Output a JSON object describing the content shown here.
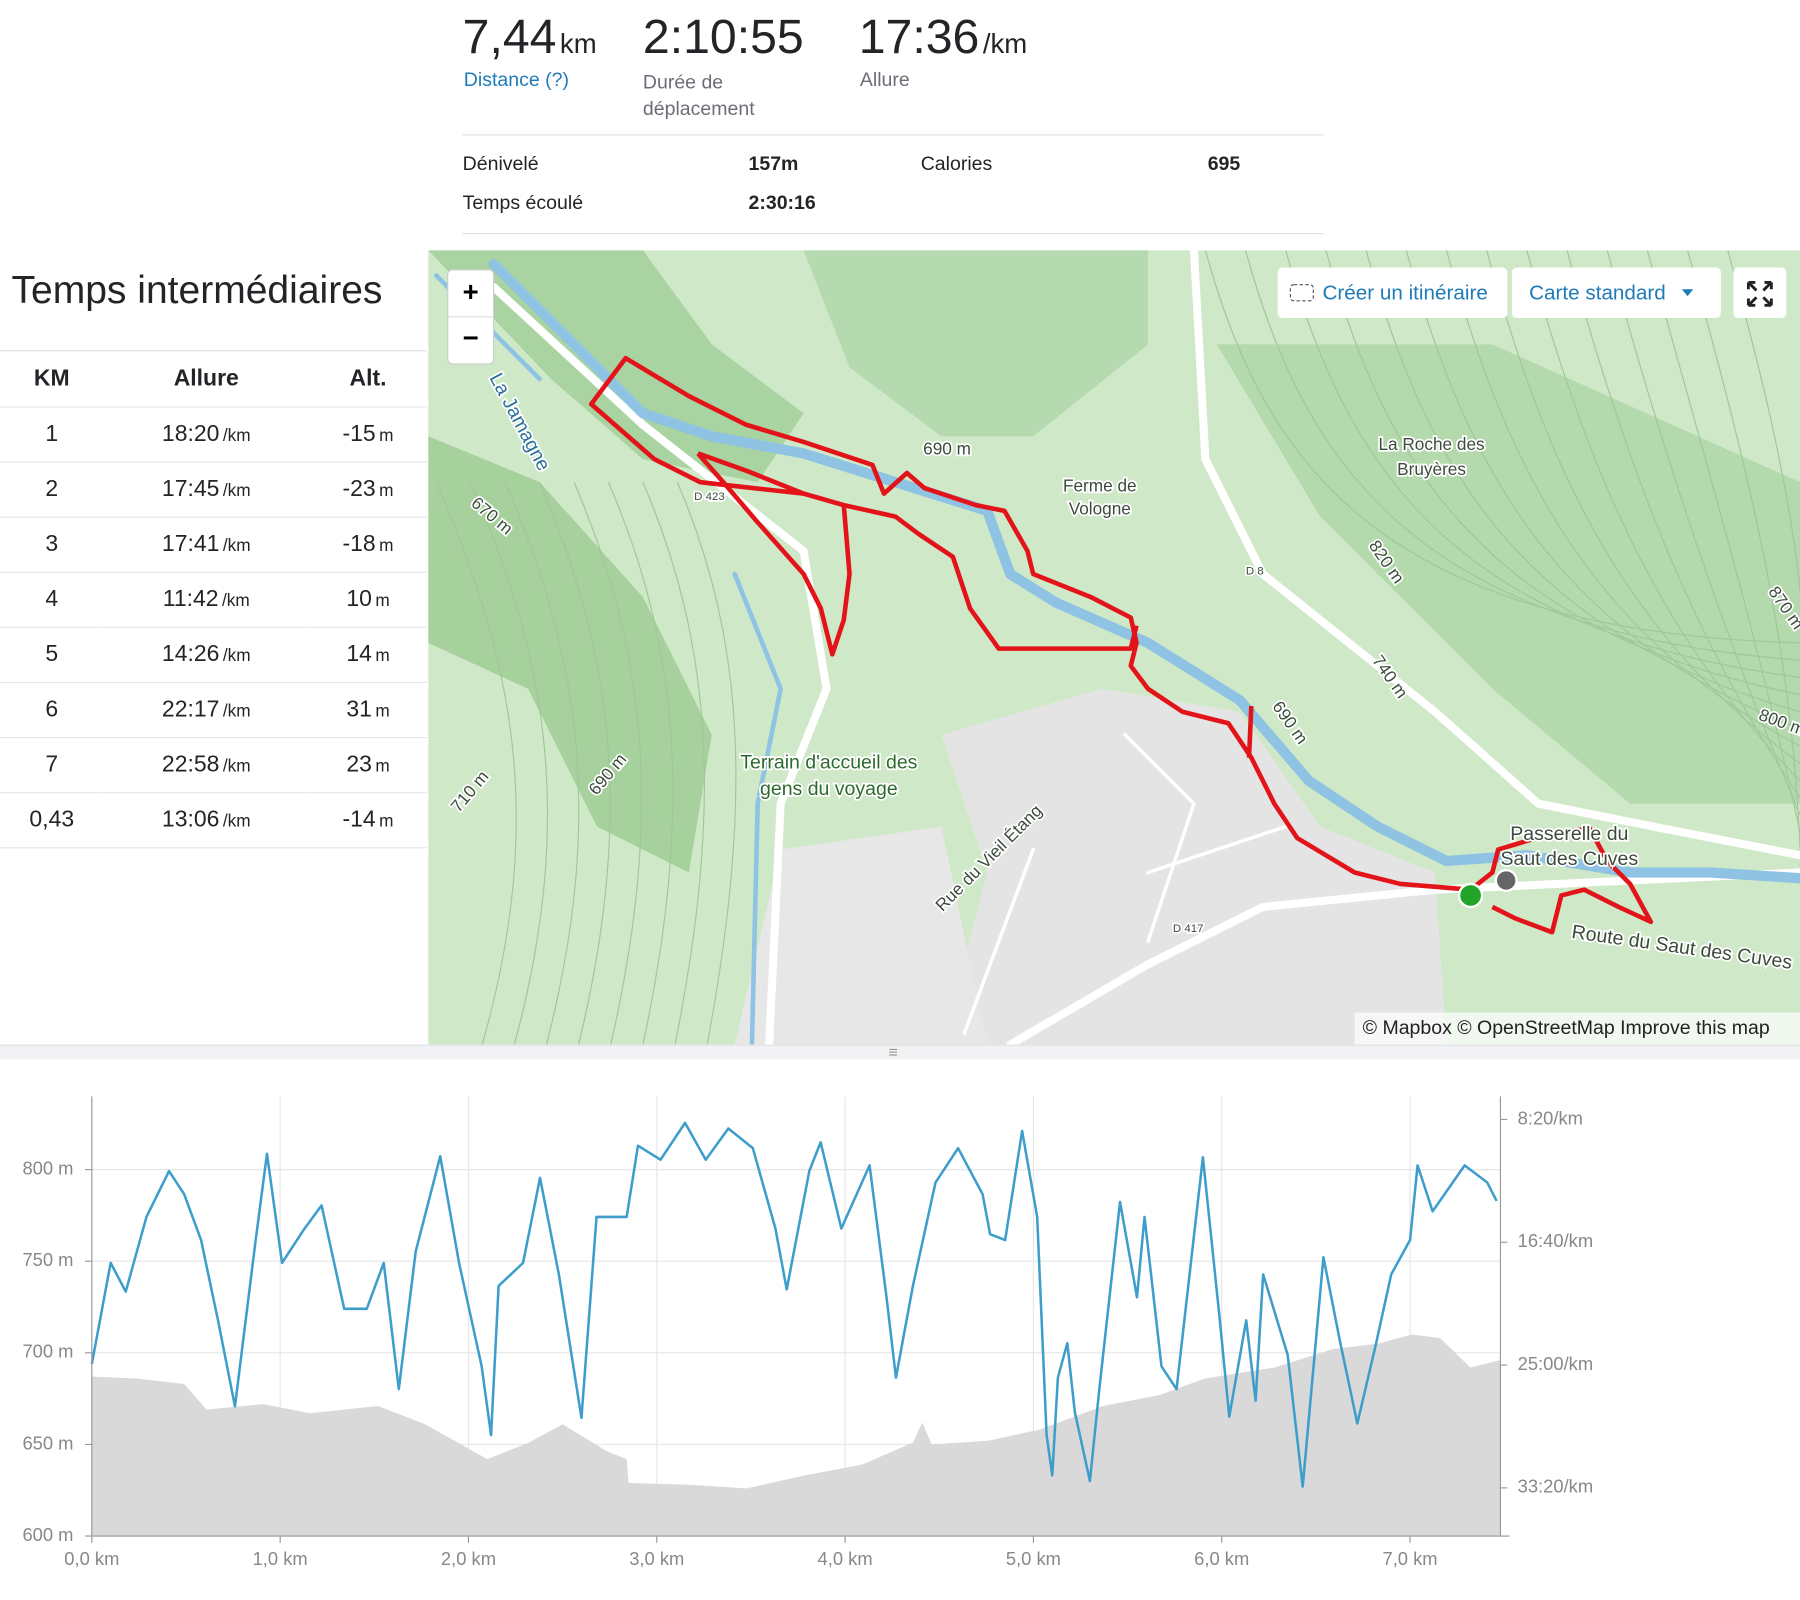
{
  "stats": {
    "distance": {
      "value": "7,44",
      "unit": "km",
      "label": "Distance (?)"
    },
    "moving_time": {
      "value": "2:10:55",
      "label": "Durée de déplacement"
    },
    "pace": {
      "value": "17:36",
      "unit": "/km",
      "label": "Allure"
    },
    "details": [
      {
        "label": "Dénivelé",
        "value": "157m"
      },
      {
        "label": "Calories",
        "value": "695"
      },
      {
        "label": "Temps écoulé",
        "value": "2:30:16"
      }
    ]
  },
  "splits": {
    "title": "Temps intermédiaires",
    "headers": [
      "KM",
      "Allure",
      "Alt."
    ],
    "rows": [
      {
        "km": "1",
        "pace": "18:20",
        "pace_unit": "/km",
        "alt": "-15",
        "alt_unit": "m"
      },
      {
        "km": "2",
        "pace": "17:45",
        "pace_unit": "/km",
        "alt": "-23",
        "alt_unit": "m"
      },
      {
        "km": "3",
        "pace": "17:41",
        "pace_unit": "/km",
        "alt": "-18",
        "alt_unit": "m"
      },
      {
        "km": "4",
        "pace": "11:42",
        "pace_unit": "/km",
        "alt": "10",
        "alt_unit": "m"
      },
      {
        "km": "5",
        "pace": "14:26",
        "pace_unit": "/km",
        "alt": "14",
        "alt_unit": "m"
      },
      {
        "km": "6",
        "pace": "22:17",
        "pace_unit": "/km",
        "alt": "31",
        "alt_unit": "m"
      },
      {
        "km": "7",
        "pace": "22:58",
        "pace_unit": "/km",
        "alt": "23",
        "alt_unit": "m"
      },
      {
        "km": "0,43",
        "pace": "13:06",
        "pace_unit": "/km",
        "alt": "-14",
        "alt_unit": "m"
      }
    ]
  },
  "map": {
    "zoom_in": "+",
    "zoom_out": "−",
    "create_route": "Créer un itinéraire",
    "map_style": "Carte standard",
    "attribution": "© Mapbox © OpenStreetMap Improve this map",
    "labels": [
      "690 m",
      "Ferme de",
      "Vologne",
      "La Roche des",
      "Bruyères",
      "D 423",
      "670 m",
      "La Jamagne",
      "D 8",
      "820 m",
      "740 m",
      "690 m",
      "870 m",
      "800 m",
      "Terrain d'accueil des",
      "gens du voyage",
      "690 m",
      "710 m",
      "Rue du Vieil Étang",
      "D 417",
      "Passerelle du",
      "Saut des Cuves",
      "Route du Saut des Cuves"
    ]
  },
  "chart_data": {
    "type": "line",
    "xlim": [
      0,
      7.48
    ],
    "xticks": [
      {
        "value": 0,
        "label": "0,0 km"
      },
      {
        "value": 1,
        "label": "1,0 km"
      },
      {
        "value": 2,
        "label": "2,0 km"
      },
      {
        "value": 3,
        "label": "3,0 km"
      },
      {
        "value": 4,
        "label": "4,0 km"
      },
      {
        "value": 5,
        "label": "5,0 km"
      },
      {
        "value": 6,
        "label": "6,0 km"
      },
      {
        "value": 7,
        "label": "7,0 km"
      }
    ],
    "ylim": [
      600,
      840
    ],
    "yticks": [
      {
        "value": 600,
        "label": "600 m"
      },
      {
        "value": 650,
        "label": "650 m"
      },
      {
        "value": 700,
        "label": "700 m"
      },
      {
        "value": 750,
        "label": "750 m"
      },
      {
        "value": 800,
        "label": "800 m"
      }
    ],
    "y2lim": [
      2196,
      406
    ],
    "y2ticks": [
      {
        "value": 500,
        "label": "8:20/km"
      },
      {
        "value": 1000,
        "label": "16:40/km"
      },
      {
        "value": 1500,
        "label": "25:00/km"
      },
      {
        "value": 2000,
        "label": "33:20/km"
      }
    ],
    "grid": true,
    "series": [
      {
        "kind": "area",
        "color": "#d9d9d9",
        "x": [
          0,
          0.24,
          0.49,
          0.61,
          0.91,
          1.16,
          1.52,
          1.77,
          2.1,
          2.32,
          2.5,
          2.74,
          2.84,
          2.85,
          3.17,
          3.48,
          3.78,
          4.09,
          4.36,
          4.41,
          4.46,
          4.76,
          5.03,
          5.37,
          5.67,
          5.91,
          6.28,
          6.59,
          6.83,
          7.01,
          7.16,
          7.32,
          7.48
        ],
        "values": [
          687,
          686,
          683,
          669,
          672,
          667,
          671,
          661,
          642,
          651,
          661,
          646,
          642,
          629,
          628,
          626,
          633,
          639,
          651,
          662,
          650,
          652,
          658,
          671,
          677,
          686,
          692,
          702,
          705,
          710,
          708,
          692,
          696
        ]
      },
      {
        "kind": "line",
        "color": "#3d9dcb",
        "axis": "y2",
        "x": [
          0,
          0.1,
          0.18,
          0.29,
          0.41,
          0.49,
          0.58,
          0.67,
          0.76,
          0.87,
          0.93,
          1.01,
          1.13,
          1.22,
          1.34,
          1.46,
          1.55,
          1.63,
          1.72,
          1.85,
          1.95,
          2.07,
          2.12,
          2.16,
          2.29,
          2.38,
          2.48,
          2.6,
          2.68,
          2.84,
          2.9,
          3.02,
          3.15,
          3.26,
          3.38,
          3.51,
          3.63,
          3.69,
          3.81,
          3.87,
          3.98,
          4.13,
          4.22,
          4.27,
          4.36,
          4.48,
          4.6,
          4.73,
          4.77,
          4.85,
          4.94,
          5.02,
          5.07,
          5.1,
          5.13,
          5.18,
          5.22,
          5.3,
          5.35,
          5.46,
          5.55,
          5.59,
          5.68,
          5.76,
          5.9,
          5.99,
          6.04,
          6.13,
          6.18,
          6.22,
          6.35,
          6.43,
          6.54,
          6.63,
          6.72,
          6.82,
          6.9,
          7.0,
          7.04,
          7.12,
          7.29,
          7.41,
          7.46
        ],
        "values": [
          1495,
          1084,
          1201,
          897,
          710,
          804,
          991,
          1318,
          1668,
          991,
          640,
          1084,
          944,
          850,
          1271,
          1271,
          1084,
          1598,
          1037,
          650,
          1084,
          1505,
          1785,
          1178,
          1084,
          738,
          1131,
          1715,
          897,
          897,
          607,
          664,
          514,
          664,
          537,
          617,
          944,
          1192,
          710,
          593,
          944,
          687,
          1224,
          1551,
          1178,
          757,
          617,
          804,
          967,
          991,
          547,
          897,
          1785,
          1949,
          1551,
          1411,
          1692,
          1972,
          1598,
          836,
          1224,
          897,
          1505,
          1598,
          654,
          1318,
          1710,
          1318,
          1645,
          1131,
          1458,
          1995,
          1061,
          1411,
          1738,
          1411,
          1131,
          991,
          687,
          874,
          687,
          757,
          832
        ]
      }
    ]
  }
}
